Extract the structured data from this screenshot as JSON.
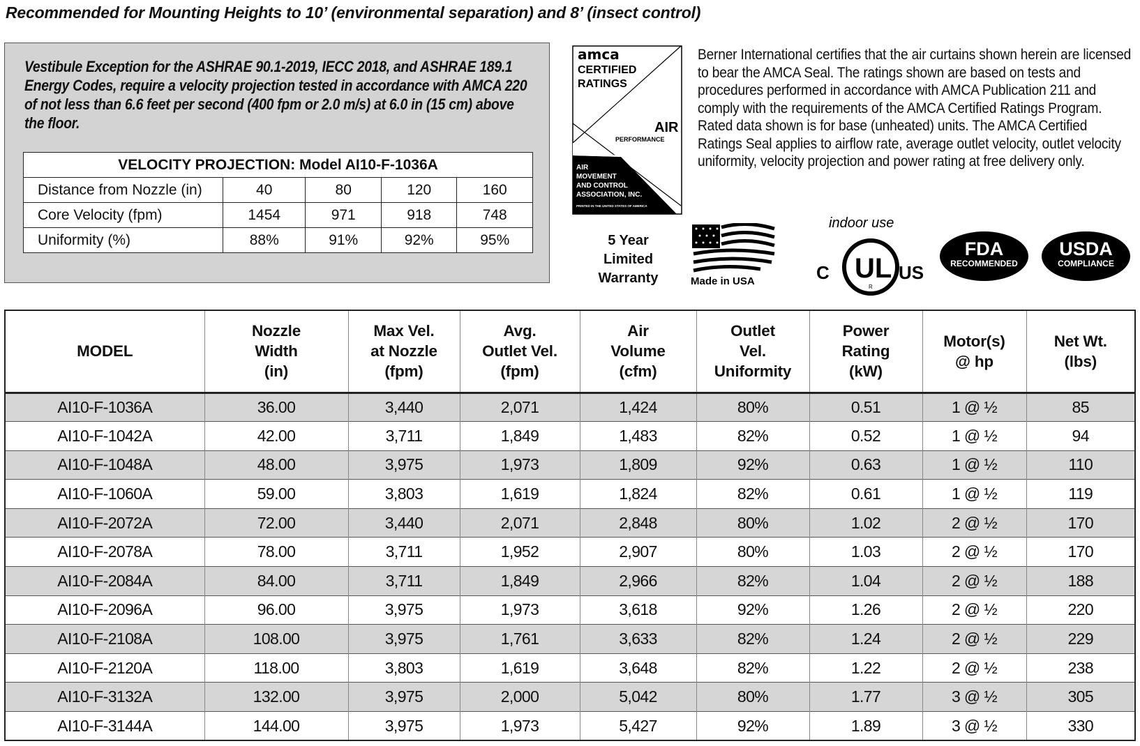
{
  "title": "Recommended for Mounting Heights to 10’ (environmental separation) and 8’ (insect control)",
  "vestibule": {
    "text": "Vestibule Exception for the ASHRAE 90.1-2019, IECC 2018, and ASHRAE 189.1 Energy Codes, require a velocity projection tested in accordance with AMCA 220 of not less than 6.6 feet per second (400 fpm or 2.0 m/s) at 6.0 in (15 cm) above the floor.",
    "table": {
      "caption": "VELOCITY PROJECTION: Model AI10-F-1036A",
      "rows": [
        {
          "label": "Distance from Nozzle (in)",
          "values": [
            "40",
            "80",
            "120",
            "160"
          ]
        },
        {
          "label": "Core Velocity (fpm)",
          "values": [
            "1454",
            "971",
            "918",
            "748"
          ]
        },
        {
          "label": "Uniformity (%)",
          "values": [
            "88%",
            "91%",
            "92%",
            "95%"
          ]
        }
      ]
    }
  },
  "amca_logo": {
    "line1": "amca",
    "line2": "CERTIFIED",
    "line3": "RATINGS",
    "line4": "AIR",
    "line5": "PERFORMANCE",
    "assoc1": "AIR",
    "assoc2": "MOVEMENT",
    "assoc3": "AND CONTROL",
    "assoc4": "ASSOCIATION, INC.",
    "printed": "PRINTED IN THE UNITED STATES OF AMERICA"
  },
  "certification_text": "Berner International certifies that the air curtains shown herein are licensed to bear the AMCA Seal.  The ratings shown are based on tests and procedures performed in accordance with AMCA Publication 211 and comply with the requirements of the AMCA Certified Ratings Program. Rated data shown is for base (unheated) units.  The AMCA Certified Ratings Seal applies to airflow rate, average outlet velocity, outlet velocity uniformity, velocity projection and power rating  at free delivery only.",
  "badges": {
    "warranty": [
      "5 Year",
      "Limited",
      "Warranty"
    ],
    "made_in_usa": "Made in USA",
    "ul": {
      "caption": "indoor use",
      "c": "C",
      "ul": "UL",
      "us": "US",
      "r": "R"
    },
    "fda": {
      "big": "FDA",
      "small": "RECOMMENDED"
    },
    "usda": {
      "big": "USDA",
      "small": "COMPLIANCE"
    }
  },
  "specs": {
    "headers": [
      [
        "MODEL"
      ],
      [
        "Nozzle",
        "Width",
        "(in)"
      ],
      [
        "Max Vel.",
        "at Nozzle",
        "(fpm)"
      ],
      [
        "Avg.",
        "Outlet Vel.",
        "(fpm)"
      ],
      [
        "Air",
        "Volume",
        "(cfm)"
      ],
      [
        "Outlet",
        "Vel.",
        "Uniformity"
      ],
      [
        "Power",
        "Rating",
        "(kW)"
      ],
      [
        "Motor(s)",
        "@ hp"
      ],
      [
        "Net Wt.",
        "(lbs)"
      ]
    ],
    "rows": [
      [
        "AI10-F-1036A",
        "36.00",
        "3,440",
        "2,071",
        "1,424",
        "80%",
        "0.51",
        "1 @ ½",
        "85"
      ],
      [
        "AI10-F-1042A",
        "42.00",
        "3,711",
        "1,849",
        "1,483",
        "82%",
        "0.52",
        "1 @ ½",
        "94"
      ],
      [
        "AI10-F-1048A",
        "48.00",
        "3,975",
        "1,973",
        "1,809",
        "92%",
        "0.63",
        "1 @ ½",
        "110"
      ],
      [
        "AI10-F-1060A",
        "59.00",
        "3,803",
        "1,619",
        "1,824",
        "82%",
        "0.61",
        "1 @ ½",
        "119"
      ],
      [
        "AI10-F-2072A",
        "72.00",
        "3,440",
        "2,071",
        "2,848",
        "80%",
        "1.02",
        "2 @ ½",
        "170"
      ],
      [
        "AI10-F-2078A",
        "78.00",
        "3,711",
        "1,952",
        "2,907",
        "80%",
        "1.03",
        "2 @ ½",
        "170"
      ],
      [
        "AI10-F-2084A",
        "84.00",
        "3,711",
        "1,849",
        "2,966",
        "82%",
        "1.04",
        "2 @ ½",
        "188"
      ],
      [
        "AI10-F-2096A",
        "96.00",
        "3,975",
        "1,973",
        "3,618",
        "92%",
        "1.26",
        "2 @ ½",
        "220"
      ],
      [
        "AI10-F-2108A",
        "108.00",
        "3,975",
        "1,761",
        "3,633",
        "82%",
        "1.24",
        "2 @ ½",
        "229"
      ],
      [
        "AI10-F-2120A",
        "118.00",
        "3,803",
        "1,619",
        "3,648",
        "82%",
        "1.22",
        "2 @ ½",
        "238"
      ],
      [
        "AI10-F-3132A",
        "132.00",
        "3,975",
        "2,000",
        "5,042",
        "80%",
        "1.77",
        "3 @ ½",
        "305"
      ],
      [
        "AI10-F-3144A",
        "144.00",
        "3,975",
        "1,973",
        "5,427",
        "92%",
        "1.89",
        "3 @ ½",
        "330"
      ]
    ]
  },
  "colors": {
    "row_shade": "#d6d6d6",
    "box_bg": "#d3d3d3"
  }
}
